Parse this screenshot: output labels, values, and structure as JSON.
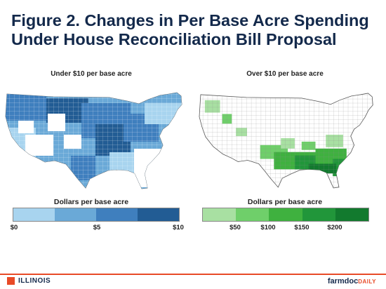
{
  "title": "Figure 2. Changes in Per Base Acre Spending Under House Reconciliation Bill Proposal",
  "left_map": {
    "subtitle": "Under $10 per base acre",
    "legend_title": "Dollars per base acre",
    "legend_colors": [
      "#a8d4ef",
      "#6aa9d7",
      "#3f7fbe",
      "#225c94"
    ],
    "tick_labels": [
      "$0",
      "$5",
      "$10"
    ]
  },
  "right_map": {
    "subtitle": "Over $10 per base acre",
    "legend_title": "Dollars per base acre",
    "legend_colors": [
      "#a8e0a2",
      "#6fcf6a",
      "#3fb13f",
      "#21963a",
      "#127a2e"
    ],
    "tick_labels": [
      "$50",
      "$100",
      "$150",
      "$200"
    ]
  },
  "footer": {
    "left_brand": "ILLINOIS",
    "right_brand": "farmdoc",
    "right_brand_suffix": "DAILY"
  }
}
